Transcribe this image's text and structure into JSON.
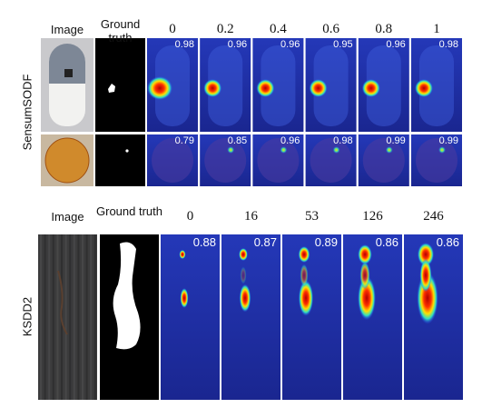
{
  "panels": [
    {
      "row_label": "SensumSODF",
      "headers": [
        "Image",
        "Ground truth",
        "0",
        "0.2",
        "0.4",
        "0.6",
        "0.8",
        "1"
      ],
      "rows": [
        {
          "scores": [
            0.98,
            0.96,
            0.96,
            0.95,
            0.96,
            0.98
          ]
        },
        {
          "scores": [
            0.79,
            0.85,
            0.96,
            0.98,
            0.99,
            0.99
          ]
        }
      ]
    },
    {
      "row_label": "KSDD2",
      "headers": [
        "Image",
        "Ground truth",
        "0",
        "16",
        "53",
        "126",
        "246"
      ],
      "rows": [
        {
          "scores": [
            0.88,
            0.87,
            0.89,
            0.86,
            0.86
          ]
        }
      ]
    }
  ]
}
